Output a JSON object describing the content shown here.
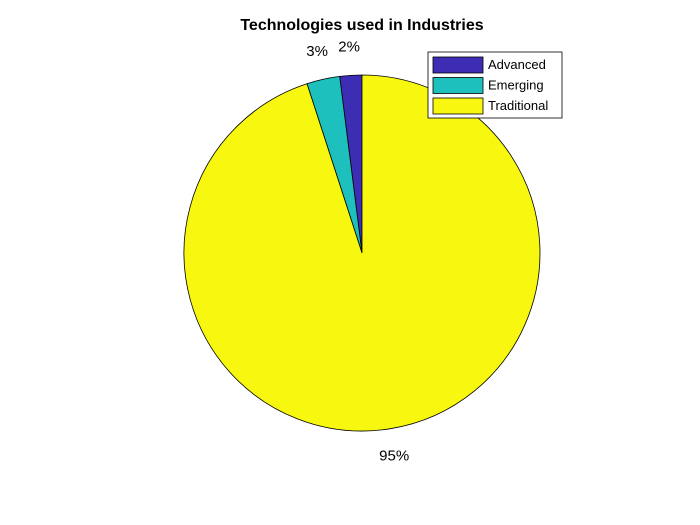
{
  "chart_data": {
    "type": "pie",
    "title": "Technologies used in Industries",
    "categories": [
      "Advanced",
      "Emerging",
      "Traditional"
    ],
    "values": [
      2,
      3,
      95
    ],
    "labels": [
      "2%",
      "3%",
      "95%"
    ],
    "colors": [
      "#3D2DB5",
      "#1EC0BD",
      "#F7F70F"
    ],
    "legend": {
      "position": "top-right",
      "entries": [
        "Advanced",
        "Emerging",
        "Traditional"
      ]
    },
    "start_angle": "top",
    "direction": "counterclockwise"
  }
}
